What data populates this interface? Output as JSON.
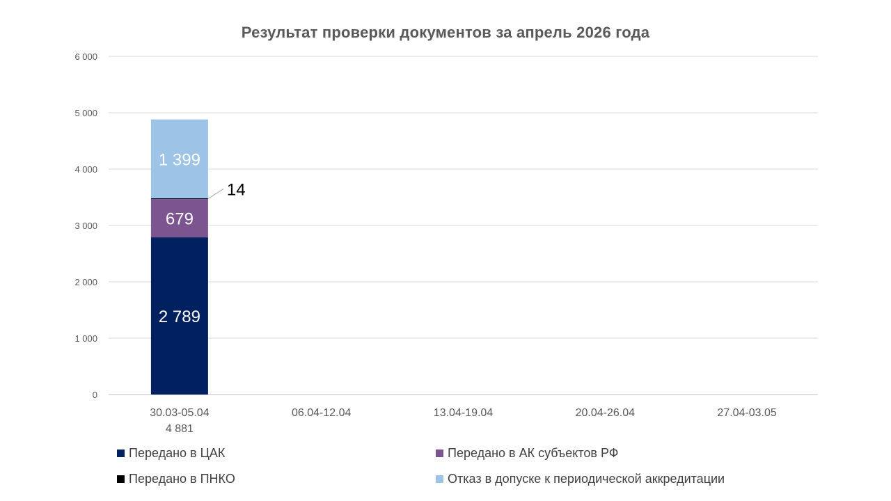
{
  "chart_data": {
    "type": "bar",
    "stacked": true,
    "title": "Результат проверки документов за апрель 2026 года",
    "categories": [
      "30.03-05.04",
      "06.04-12.04",
      "13.04-19.04",
      "20.04-26.04",
      "27.04-03.05"
    ],
    "category_totals": [
      "4 881",
      "",
      "",
      "",
      ""
    ],
    "y_ticks": [
      "0",
      "1 000",
      "2 000",
      "3 000",
      "4 000",
      "5 000",
      "6 000"
    ],
    "ylim": [
      0,
      6000
    ],
    "grid": true,
    "legend_position": "bottom",
    "series": [
      {
        "name": "Передано в ЦАК",
        "color": "#002060",
        "values": [
          2789,
          null,
          null,
          null,
          null
        ],
        "labels": [
          "2 789",
          "",
          "",
          "",
          ""
        ]
      },
      {
        "name": "Передано в АК субъектов РФ",
        "color": "#7B5490",
        "values": [
          679,
          null,
          null,
          null,
          null
        ],
        "labels": [
          "679",
          "",
          "",
          "",
          ""
        ]
      },
      {
        "name": "Передано в ПНКО",
        "color": "#000000",
        "values": [
          14,
          null,
          null,
          null,
          null
        ],
        "labels": [
          "14",
          "",
          "",
          "",
          ""
        ]
      },
      {
        "name": "Отказ в допуске к периодической аккредитации",
        "color": "#9DC3E6",
        "values": [
          1399,
          null,
          null,
          null,
          null
        ],
        "labels": [
          "1 399",
          "",
          "",
          "",
          ""
        ]
      }
    ]
  }
}
